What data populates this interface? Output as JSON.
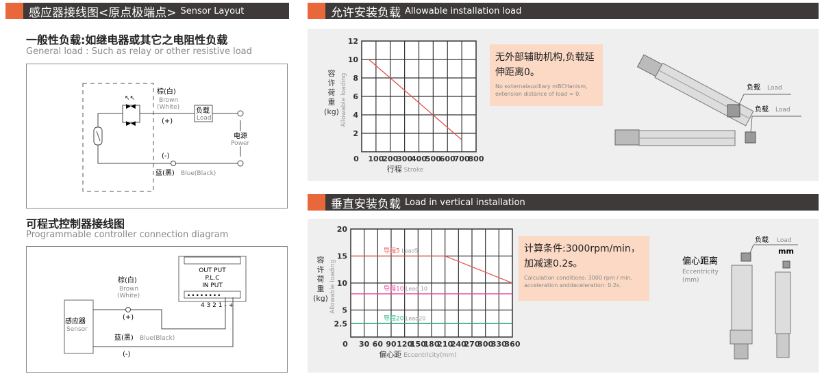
{
  "left": {
    "header": {
      "cn": "感应器接线图<原点极端点>",
      "en": "Sensor Layout"
    },
    "general": {
      "title": "一般性负载:如继电器或其它之电阻性负载",
      "subtitle": "General load : Such as relay or other resistive load",
      "brown_cn": "棕(白)",
      "brown_en": "Brown",
      "white_en": "(White)",
      "plus": "(+)",
      "minus": "(-)",
      "load_cn": "负载",
      "load_en": "Load",
      "power_cn": "电源",
      "power_en": "Power",
      "blue_cn": "蓝(黑)",
      "blue_en": "Blue(Black)"
    },
    "plc": {
      "title": "可程式控制器接线图",
      "subtitle": "Programmable controller connection diagram",
      "output": "OUT PUT",
      "plc": "P.L.C",
      "input": "IN PUT",
      "terminals": "4 3 2 1 -  +",
      "brown_cn": "棕(白)",
      "brown_en": "Brown",
      "white_en": "(White)",
      "plus": "(+)",
      "minus": "(-)",
      "blue_cn": "蓝(黑)",
      "blue_en": "Blue(Black)",
      "sensor_cn": "感应器",
      "sensor_en": "Sensor"
    }
  },
  "right_top": {
    "header": {
      "cn": "允许安装负载",
      "en": "Allowable installation load"
    },
    "note": {
      "cn": "无外部辅助机构,负载延伸距离0。",
      "en": "No externalauxiliary mBCHanism, extension distance of load = 0."
    },
    "load_cn": "负载",
    "load_en": "Load"
  },
  "right_bottom": {
    "header": {
      "cn": "垂直安装负载",
      "en": "Load in vertical installation"
    },
    "note": {
      "cn": "计算条件:3000rpm/min，加减速0.2s。",
      "en": "Calculation conditions: 3000 rpm / min, acceleration anddeceleration: 0.2s."
    },
    "load_cn": "负载",
    "load_en": "Load",
    "ecc_cn": "偏心距离",
    "ecc_en": "Eccentricity",
    "ecc_unit": "(mm)",
    "mm": "mm"
  },
  "chart_data": [
    {
      "type": "line",
      "ylabel_cn": "容许荷重(kg)",
      "ylabel_en": "Allowable loading",
      "xlabel_cn": "行程",
      "xlabel_en": "Stroke",
      "xlim": [
        0,
        800
      ],
      "ylim": [
        0,
        12
      ],
      "grid": true,
      "x_ticks": [
        "0",
        "100",
        "200",
        "300",
        "400",
        "500",
        "600",
        "700",
        "800"
      ],
      "y_ticks": [
        "2",
        "4",
        "6",
        "8",
        "10",
        "12"
      ],
      "series": [
        {
          "color": "#e0504a",
          "points": [
            [
              50,
              10
            ],
            [
              700,
              1.3
            ]
          ]
        }
      ]
    },
    {
      "type": "line",
      "ylabel_cn": "容许荷重(kg)",
      "ylabel_en": "Allowable loading",
      "xlabel_cn": "偏心距",
      "xlabel_en": "Eccentricity(mm)",
      "xlim": [
        0,
        360
      ],
      "ylim": [
        0,
        20
      ],
      "grid": true,
      "x_ticks": [
        "0",
        "30",
        "60",
        "90",
        "120",
        "150",
        "180",
        "210",
        "240",
        "270",
        "300",
        "330",
        "360"
      ],
      "y_ticks": [
        "2.5",
        "5",
        "10",
        "15",
        "20"
      ],
      "y_tick_values": [
        2.5,
        5,
        10,
        15,
        20
      ],
      "series": [
        {
          "name": "导程5 Lead5",
          "name_cn": "导程5",
          "name_en": "Lead5",
          "color": "#e85a52",
          "points": [
            [
              0,
              15
            ],
            [
              210,
              15
            ],
            [
              360,
              10
            ]
          ]
        },
        {
          "name": "导程10 Lead 10",
          "name_cn": "导程10",
          "name_en": "Lead 10",
          "color": "#e8479a",
          "points": [
            [
              0,
              8
            ],
            [
              360,
              8
            ]
          ]
        },
        {
          "name": "导程20 Lead20",
          "name_cn": "导程20",
          "name_en": "Lead20",
          "color": "#2fb58a",
          "points": [
            [
              0,
              2.5
            ],
            [
              360,
              2.5
            ]
          ]
        }
      ]
    }
  ]
}
